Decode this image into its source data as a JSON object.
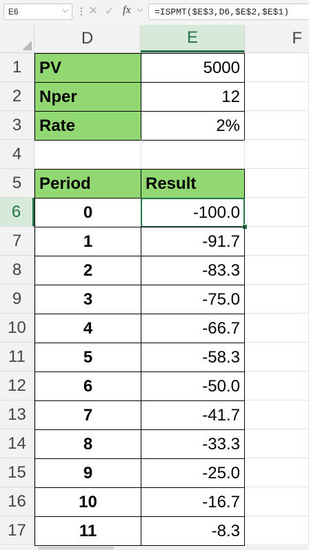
{
  "formula_bar": {
    "name_box": "E6",
    "name_box_caret": "⌵",
    "dots": "⋮",
    "cancel_glyph": "✕",
    "enter_glyph": "✓",
    "fx_label": "fx",
    "fx_caret": "⌵",
    "formula": "=ISPMT($E$3,D6,$E$2,$E$1)"
  },
  "columns": [
    "D",
    "E",
    "F"
  ],
  "selected_column": "E",
  "rows": [
    {
      "num": "1",
      "d": "PV",
      "e": "5000"
    },
    {
      "num": "2",
      "d": "Nper",
      "e": "12"
    },
    {
      "num": "3",
      "d": "Rate",
      "e": "2%"
    },
    {
      "num": "4",
      "d": "",
      "e": ""
    },
    {
      "num": "5",
      "d": "Period",
      "e": "Result"
    },
    {
      "num": "6",
      "d": "0",
      "e": "-100.0"
    },
    {
      "num": "7",
      "d": "1",
      "e": "-91.7"
    },
    {
      "num": "8",
      "d": "2",
      "e": "-83.3"
    },
    {
      "num": "9",
      "d": "3",
      "e": "-75.0"
    },
    {
      "num": "10",
      "d": "4",
      "e": "-66.7"
    },
    {
      "num": "11",
      "d": "5",
      "e": "-58.3"
    },
    {
      "num": "12",
      "d": "6",
      "e": "-50.0"
    },
    {
      "num": "13",
      "d": "7",
      "e": "-41.7"
    },
    {
      "num": "14",
      "d": "8",
      "e": "-33.3"
    },
    {
      "num": "15",
      "d": "9",
      "e": "-25.0"
    },
    {
      "num": "16",
      "d": "10",
      "e": "-16.7"
    },
    {
      "num": "17",
      "d": "11",
      "e": "-8.3"
    }
  ],
  "selected_row": "6",
  "colors": {
    "header_fill": "#92d872",
    "selection": "#217346",
    "selected_header_bg": "#d7e9d9"
  }
}
